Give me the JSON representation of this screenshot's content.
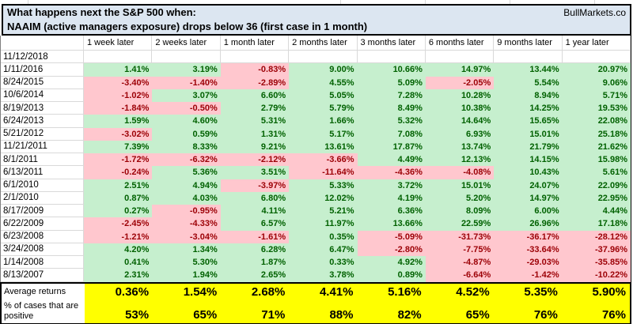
{
  "header": {
    "title_line1": "What happens next the S&P 500 when:",
    "title_line2": "NAAIM (active managers exposure) drops below 36 (first case in 1 month)",
    "brand": "BullMarkets.co"
  },
  "chart_data": {
    "type": "table",
    "title": "What happens next the S&P 500 when: NAAIM (active managers exposure) drops below 36 (first case in 1 month)",
    "columns": [
      "1 week later",
      "2 weeks later",
      "1 month later",
      "2 months later",
      "3 months later",
      "6 months later",
      "9 months later",
      "1 year later"
    ],
    "rows": [
      {
        "date": "11/12/2018",
        "values": [
          "",
          "",
          "",
          "",
          "",
          "",
          "",
          ""
        ]
      },
      {
        "date": "1/11/2016",
        "values": [
          "1.41%",
          "3.19%",
          "-0.83%",
          "9.00%",
          "10.66%",
          "14.97%",
          "13.44%",
          "20.97%"
        ]
      },
      {
        "date": "8/24/2015",
        "values": [
          "-3.40%",
          "-1.40%",
          "-2.89%",
          "4.55%",
          "5.09%",
          "-2.05%",
          "5.54%",
          "9.06%"
        ]
      },
      {
        "date": "10/6/2014",
        "values": [
          "-1.02%",
          "3.07%",
          "6.60%",
          "5.05%",
          "7.28%",
          "10.28%",
          "8.94%",
          "5.71%"
        ]
      },
      {
        "date": "8/19/2013",
        "values": [
          "-1.84%",
          "-0.50%",
          "2.79%",
          "5.79%",
          "8.49%",
          "10.38%",
          "14.25%",
          "19.53%"
        ]
      },
      {
        "date": "6/24/2013",
        "values": [
          "1.59%",
          "4.60%",
          "5.31%",
          "1.66%",
          "5.32%",
          "14.64%",
          "15.65%",
          "22.08%"
        ]
      },
      {
        "date": "5/21/2012",
        "values": [
          "-3.02%",
          "0.59%",
          "1.31%",
          "5.17%",
          "7.08%",
          "6.93%",
          "15.01%",
          "25.18%"
        ]
      },
      {
        "date": "11/21/2011",
        "values": [
          "7.39%",
          "8.33%",
          "9.21%",
          "13.61%",
          "17.87%",
          "13.74%",
          "21.79%",
          "21.62%"
        ]
      },
      {
        "date": "8/1/2011",
        "values": [
          "-1.72%",
          "-6.32%",
          "-2.12%",
          "-3.66%",
          "4.49%",
          "12.13%",
          "14.15%",
          "15.98%"
        ]
      },
      {
        "date": "6/13/2011",
        "values": [
          "-0.24%",
          "5.36%",
          "3.51%",
          "-11.64%",
          "-4.36%",
          "-4.08%",
          "10.43%",
          "5.61%"
        ]
      },
      {
        "date": "6/1/2010",
        "values": [
          "2.51%",
          "4.94%",
          "-3.97%",
          "5.33%",
          "3.72%",
          "15.01%",
          "24.07%",
          "22.09%"
        ]
      },
      {
        "date": "2/1/2010",
        "values": [
          "0.87%",
          "4.03%",
          "6.80%",
          "12.02%",
          "4.19%",
          "5.20%",
          "14.97%",
          "22.95%"
        ]
      },
      {
        "date": "8/17/2009",
        "values": [
          "0.27%",
          "-0.95%",
          "4.11%",
          "5.21%",
          "6.36%",
          "8.09%",
          "6.00%",
          "4.44%"
        ]
      },
      {
        "date": "6/22/2009",
        "values": [
          "-2.45%",
          "-4.33%",
          "6.57%",
          "11.97%",
          "13.66%",
          "22.59%",
          "26.96%",
          "17.18%"
        ]
      },
      {
        "date": "6/23/2008",
        "values": [
          "-1.21%",
          "-3.04%",
          "-1.61%",
          "0.35%",
          "-5.09%",
          "-31.73%",
          "-36.17%",
          "-28.12%"
        ]
      },
      {
        "date": "3/24/2008",
        "values": [
          "4.20%",
          "1.34%",
          "6.28%",
          "6.47%",
          "-2.80%",
          "-7.75%",
          "-33.64%",
          "-37.96%"
        ]
      },
      {
        "date": "1/14/2008",
        "values": [
          "0.41%",
          "5.30%",
          "1.87%",
          "0.33%",
          "4.92%",
          "-4.87%",
          "-29.03%",
          "-35.85%"
        ]
      },
      {
        "date": "8/13/2007",
        "values": [
          "2.31%",
          "1.94%",
          "2.65%",
          "3.78%",
          "0.89%",
          "-6.64%",
          "-1.42%",
          "-10.22%"
        ]
      }
    ],
    "summary_rows": [
      {
        "label": "Average returns",
        "values": [
          "0.36%",
          "1.54%",
          "2.68%",
          "4.41%",
          "5.16%",
          "4.52%",
          "5.35%",
          "5.90%"
        ]
      },
      {
        "label": "% of cases that are positive",
        "values": [
          "53%",
          "65%",
          "71%",
          "88%",
          "82%",
          "65%",
          "76%",
          "76%"
        ]
      }
    ]
  },
  "colors": {
    "positive_bg": "#C6EFCE",
    "positive_text": "#006100",
    "negative_bg": "#FFC7CE",
    "negative_text": "#9C0006",
    "summary_bg": "#FFFF00",
    "title_bg": "#DCE6F1",
    "gridline": "#D9D9D9"
  }
}
